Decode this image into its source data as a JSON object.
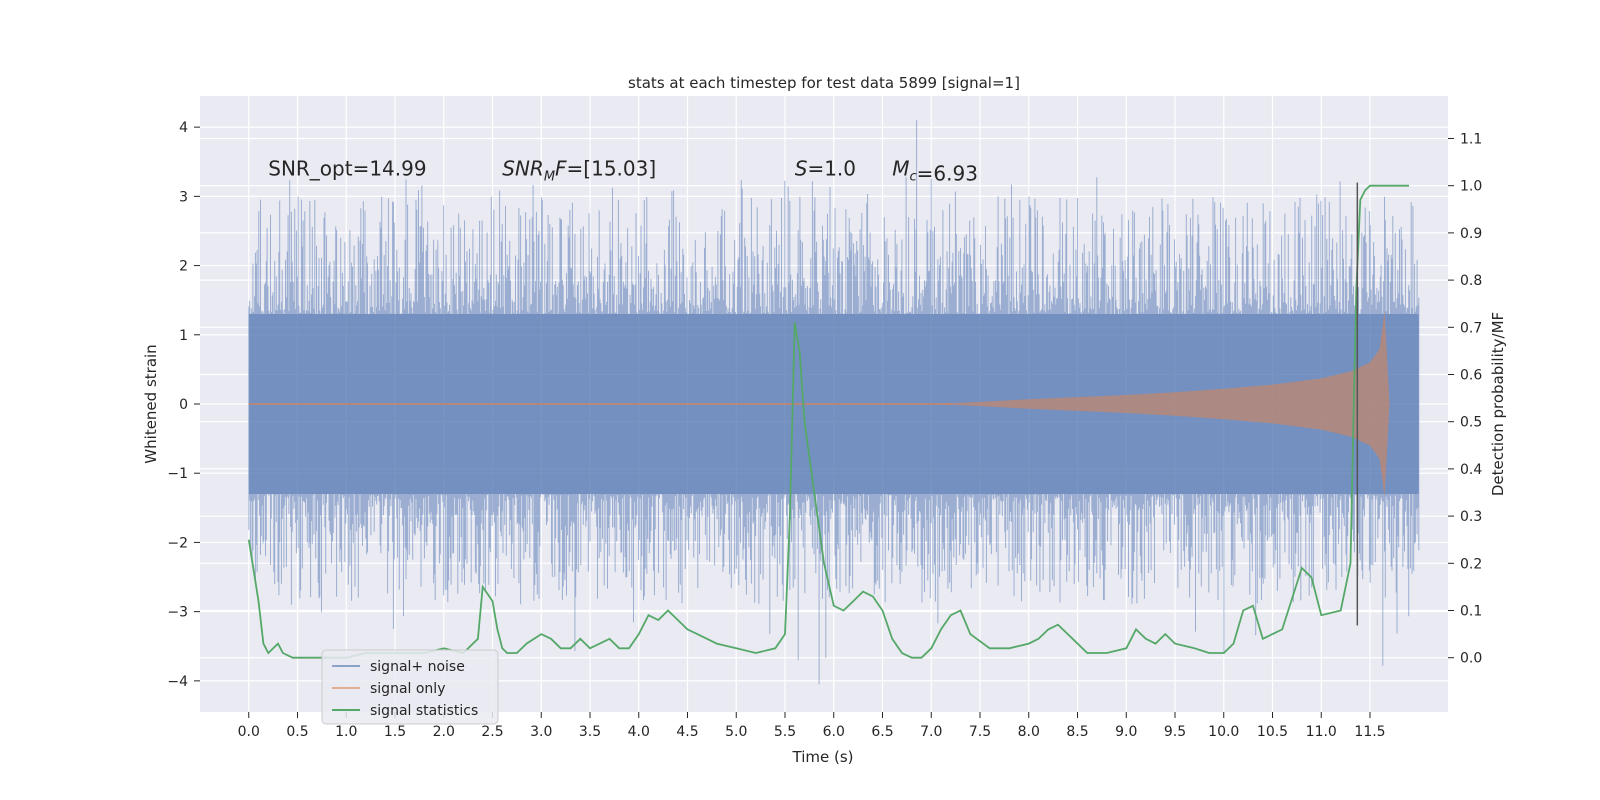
{
  "chart_data": {
    "type": "line",
    "title": "stats at each timestep for test data 5899 [signal=1]",
    "xlabel": "Time (s)",
    "ylabel": "Whitened strain",
    "ylabel_right": "Detection probability/MF",
    "xlim": [
      -0.5,
      12.3
    ],
    "ylim": [
      -4.45,
      4.45
    ],
    "ylim_right": [
      -0.115,
      1.19
    ],
    "x_ticks": [
      0.0,
      0.5,
      1.0,
      1.5,
      2.0,
      2.5,
      3.0,
      3.5,
      4.0,
      4.5,
      5.0,
      5.5,
      6.0,
      6.5,
      7.0,
      7.5,
      8.0,
      8.5,
      9.0,
      9.5,
      10.0,
      10.5,
      11.0,
      11.5
    ],
    "x_tick_labels": [
      "0.0",
      "0.5",
      "1.0",
      "1.5",
      "2.0",
      "2.5",
      "3.0",
      "3.5",
      "4.0",
      "4.5",
      "5.0",
      "5.5",
      "6.0",
      "6.5",
      "7.0",
      "7.5",
      "8.0",
      "8.5",
      "9.0",
      "9.5",
      "10.0",
      "10.5",
      "11.0",
      "11.5"
    ],
    "y_ticks": [
      -4,
      -3,
      -2,
      -1,
      0,
      1,
      2,
      3,
      4
    ],
    "y_tick_labels": [
      "−4",
      "−3",
      "−2",
      "−1",
      "0",
      "1",
      "2",
      "3",
      "4"
    ],
    "y_right_ticks": [
      0.0,
      0.1,
      0.2,
      0.3,
      0.4,
      0.5,
      0.6,
      0.7,
      0.8,
      0.9,
      1.0,
      1.1
    ],
    "y_right_tick_labels": [
      "0.0",
      "0.1",
      "0.2",
      "0.3",
      "0.4",
      "0.5",
      "0.6",
      "0.7",
      "0.8",
      "0.9",
      "1.0",
      "1.1"
    ],
    "grid": true,
    "background": "#eaeaf2",
    "legend_position": "lower-left",
    "series": [
      {
        "name": "signal+ noise",
        "color": "#4c72b0",
        "style": "dense noise band (alpha ~0.5)",
        "x_range": [
          0.0,
          12.0
        ],
        "core_band": [
          -1.3,
          1.3
        ],
        "peak_max": 4.1,
        "peak_min": -4.05
      },
      {
        "name": "signal only",
        "color": "#dd8452",
        "style": "chirp envelope",
        "envelope_x": [
          0.0,
          7.0,
          7.5,
          8.0,
          8.5,
          9.0,
          9.5,
          10.0,
          10.5,
          11.0,
          11.3,
          11.5,
          11.6,
          11.65,
          11.7
        ],
        "envelope_amp": [
          0.0,
          0.0,
          0.03,
          0.07,
          0.1,
          0.13,
          0.17,
          0.22,
          0.28,
          0.37,
          0.47,
          0.6,
          0.8,
          1.35,
          0.0
        ]
      },
      {
        "name": "signal statistics",
        "color": "#55a868",
        "axis": "right",
        "x": [
          0.0,
          0.1,
          0.15,
          0.2,
          0.25,
          0.3,
          0.35,
          0.45,
          0.6,
          0.8,
          1.0,
          1.2,
          1.4,
          1.6,
          1.8,
          2.0,
          2.2,
          2.35,
          2.4,
          2.5,
          2.55,
          2.6,
          2.65,
          2.75,
          2.85,
          3.0,
          3.1,
          3.2,
          3.3,
          3.4,
          3.5,
          3.6,
          3.7,
          3.8,
          3.9,
          4.0,
          4.1,
          4.2,
          4.3,
          4.4,
          4.5,
          4.6,
          4.7,
          4.8,
          5.0,
          5.2,
          5.4,
          5.5,
          5.55,
          5.6,
          5.65,
          5.7,
          5.8,
          5.9,
          6.0,
          6.1,
          6.2,
          6.3,
          6.4,
          6.5,
          6.6,
          6.7,
          6.8,
          6.9,
          7.0,
          7.1,
          7.2,
          7.3,
          7.4,
          7.6,
          7.8,
          8.0,
          8.1,
          8.2,
          8.3,
          8.45,
          8.6,
          8.8,
          9.0,
          9.1,
          9.2,
          9.3,
          9.4,
          9.5,
          9.7,
          9.85,
          10.0,
          10.1,
          10.2,
          10.3,
          10.4,
          10.6,
          10.8,
          10.9,
          11.0,
          11.2,
          11.3,
          11.33,
          11.36,
          11.4,
          11.45,
          11.5,
          11.7,
          11.9
        ],
        "y": [
          0.25,
          0.12,
          0.03,
          0.01,
          0.02,
          0.03,
          0.01,
          0.0,
          0.0,
          0.0,
          0.0,
          0.01,
          0.01,
          0.01,
          0.01,
          0.02,
          0.01,
          0.04,
          0.15,
          0.12,
          0.06,
          0.02,
          0.01,
          0.01,
          0.03,
          0.05,
          0.04,
          0.02,
          0.02,
          0.04,
          0.02,
          0.03,
          0.04,
          0.02,
          0.02,
          0.05,
          0.09,
          0.08,
          0.1,
          0.08,
          0.06,
          0.05,
          0.04,
          0.03,
          0.02,
          0.01,
          0.02,
          0.05,
          0.3,
          0.71,
          0.65,
          0.5,
          0.35,
          0.2,
          0.11,
          0.1,
          0.12,
          0.14,
          0.13,
          0.1,
          0.04,
          0.01,
          0.0,
          0.0,
          0.02,
          0.06,
          0.09,
          0.1,
          0.05,
          0.02,
          0.02,
          0.03,
          0.04,
          0.06,
          0.07,
          0.04,
          0.01,
          0.01,
          0.02,
          0.06,
          0.04,
          0.03,
          0.05,
          0.03,
          0.02,
          0.01,
          0.01,
          0.03,
          0.1,
          0.11,
          0.04,
          0.06,
          0.19,
          0.17,
          0.09,
          0.1,
          0.2,
          0.5,
          0.78,
          0.97,
          0.99,
          1.0,
          1.0,
          1.0
        ]
      }
    ],
    "vline": {
      "x": 11.37,
      "color": "#555555"
    },
    "annotations": [
      {
        "text": "SNR_opt=14.99",
        "x": 0.2,
        "y": 3.3
      },
      {
        "text": "SNR_MF=[15.03]",
        "x": 2.6,
        "y": 3.3
      },
      {
        "text": "S=1.0",
        "x": 5.6,
        "y": 3.3
      },
      {
        "text": "M_c=6.93",
        "x": 6.6,
        "y": 3.3
      }
    ]
  }
}
